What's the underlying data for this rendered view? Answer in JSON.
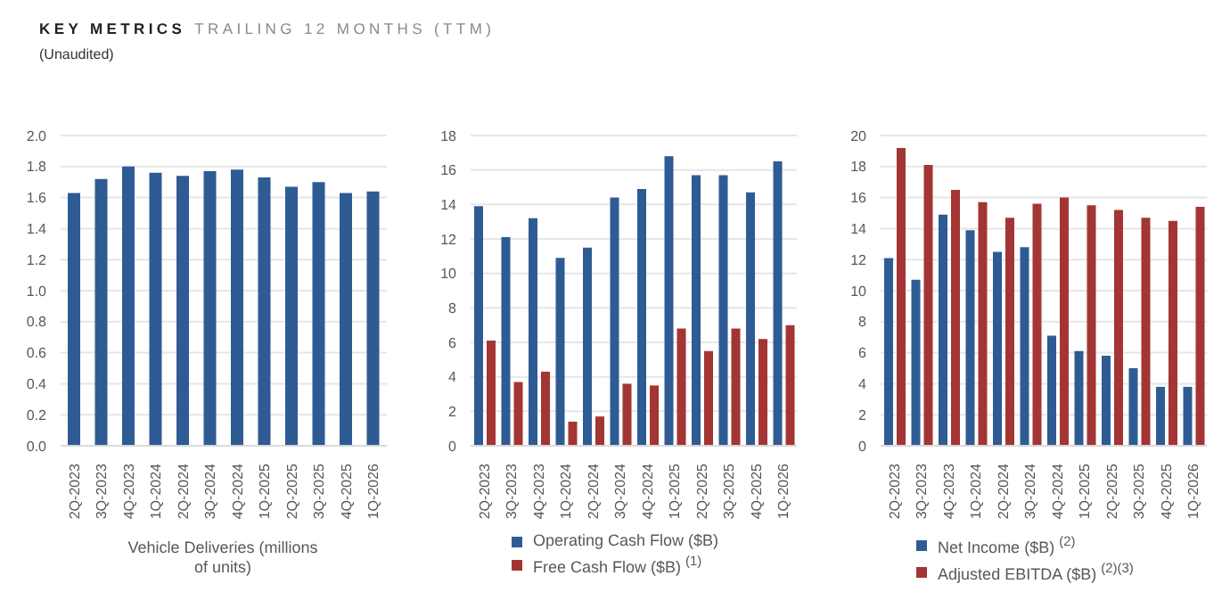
{
  "chart_data": [
    {
      "type": "bar",
      "title": "KEY METRICS",
      "subtitle": "TRAILING 12 MONTHS (TTM)",
      "annotations": [
        "(Unaudited)"
      ],
      "xlabel": "Vehicle Deliveries (millions of units)",
      "categories": [
        "2Q-2023",
        "3Q-2023",
        "4Q-2023",
        "1Q-2024",
        "2Q-2024",
        "3Q-2024",
        "4Q-2024",
        "1Q-2025",
        "2Q-2025",
        "3Q-2025",
        "4Q-2025",
        "1Q-2026"
      ],
      "series": [
        {
          "color": "#2f5b94",
          "values": [
            1.63,
            1.72,
            1.8,
            1.76,
            1.74,
            1.77,
            1.78,
            1.73,
            1.67,
            1.7,
            1.63,
            1.64
          ]
        }
      ],
      "ylim": [
        0,
        2
      ],
      "yticks": [
        {
          "value": 0,
          "label": "0.0"
        },
        {
          "value": 0.2,
          "label": "0.2"
        },
        {
          "value": 0.4,
          "label": "0.4"
        },
        {
          "value": 0.6,
          "label": "0.6"
        },
        {
          "value": 0.8,
          "label": "0.8"
        },
        {
          "value": 1,
          "label": "1.0"
        },
        {
          "value": 1.2,
          "label": "1.2"
        },
        {
          "value": 1.4,
          "label": "1.4"
        },
        {
          "value": 1.6,
          "label": "1.6"
        },
        {
          "value": 1.8,
          "label": "1.8"
        },
        {
          "value": 2,
          "label": "2.0"
        }
      ],
      "grid": "y"
    },
    {
      "type": "bar",
      "categories": [
        "2Q-2023",
        "3Q-2023",
        "4Q-2023",
        "1Q-2024",
        "2Q-2024",
        "3Q-2024",
        "4Q-2024",
        "1Q-2025",
        "2Q-2025",
        "3Q-2025",
        "4Q-2025",
        "1Q-2026"
      ],
      "series": [
        {
          "name": "Operating Cash Flow ($B)",
          "color": "#2f5b94",
          "values": [
            13.9,
            12.1,
            13.2,
            10.9,
            11.5,
            14.4,
            14.9,
            16.8,
            15.7,
            15.7,
            14.7,
            16.5
          ]
        },
        {
          "name": "Free Cash Flow ($B) $^{(1)}$",
          "color": "#a33535",
          "values": [
            6.1,
            3.7,
            4.3,
            1.4,
            1.7,
            3.6,
            3.5,
            6.8,
            5.5,
            6.8,
            6.2,
            7.0
          ]
        }
      ],
      "ylim": [
        0,
        18
      ],
      "yticks": [
        0,
        2,
        4,
        6,
        8,
        10,
        12,
        14,
        16,
        18
      ],
      "grid": "y",
      "legend": "bottom"
    },
    {
      "type": "bar",
      "categories": [
        "2Q-2023",
        "3Q-2023",
        "4Q-2023",
        "1Q-2024",
        "2Q-2024",
        "3Q-2024",
        "4Q-2024",
        "1Q-2025",
        "2Q-2025",
        "3Q-2025",
        "4Q-2025",
        "1Q-2026"
      ],
      "series": [
        {
          "name": "Net Income ($B) $^{(2)}$",
          "color": "#2f5b94",
          "values": [
            12.1,
            10.7,
            14.9,
            13.9,
            12.5,
            12.8,
            7.1,
            6.1,
            5.8,
            5.0,
            3.8,
            3.8
          ]
        },
        {
          "name": "Adjusted EBITDA ($B) $^{(2)(3)}$",
          "color": "#a33535",
          "values": [
            19.2,
            18.1,
            16.5,
            15.7,
            14.7,
            15.6,
            16.0,
            15.5,
            15.2,
            14.7,
            14.5,
            15.4
          ]
        }
      ],
      "ylim": [
        0,
        20
      ],
      "yticks": [
        0,
        2,
        4,
        6,
        8,
        10,
        12,
        14,
        16,
        18,
        20
      ],
      "grid": "y",
      "legend": "bottom"
    }
  ]
}
